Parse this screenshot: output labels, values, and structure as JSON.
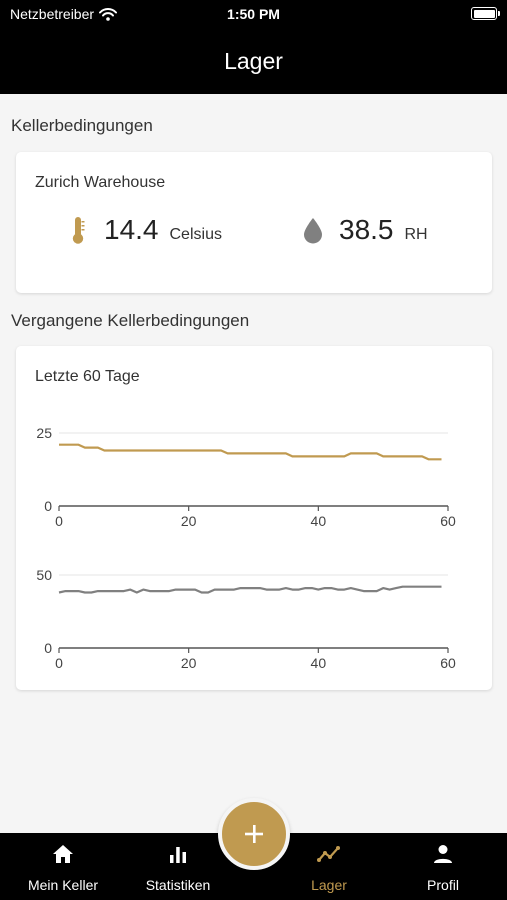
{
  "status_bar": {
    "carrier": "Netzbetreiber",
    "time": "1:50 PM"
  },
  "app_bar": {
    "title": "Lager"
  },
  "current": {
    "section_title": "Kellerbedingungen",
    "location": "Zurich Warehouse",
    "temperature": {
      "value": "14.4",
      "unit": "Celsius"
    },
    "humidity": {
      "value": "38.5",
      "unit": "RH"
    }
  },
  "history": {
    "section_title": "Vergangene Kellerbedingungen",
    "card_title": "Letzte 60 Tage"
  },
  "chart_data": [
    {
      "type": "line",
      "series": [
        {
          "x": [
            0,
            3,
            4,
            6,
            7,
            25,
            26,
            35,
            36,
            44,
            45,
            49,
            50,
            56,
            57,
            59
          ],
          "y": [
            21,
            21,
            20,
            20,
            19,
            19,
            18,
            18,
            17,
            17,
            18,
            18,
            17,
            17,
            16,
            16
          ]
        }
      ],
      "xlim": [
        0,
        60
      ],
      "ylim": [
        0,
        25
      ],
      "xticks": [
        0,
        20,
        40,
        60
      ],
      "yticks": [
        0,
        25
      ],
      "grid": true,
      "color": "#c09a50"
    },
    {
      "type": "line",
      "series": [
        {
          "x": [
            0,
            1,
            3,
            4,
            5,
            6,
            7,
            10,
            11,
            12,
            13,
            14,
            17,
            18,
            21,
            22,
            23,
            24,
            27,
            28,
            31,
            32,
            34,
            35,
            36,
            37,
            38,
            39,
            40,
            41,
            42,
            43,
            44,
            45,
            46,
            47,
            49,
            50,
            51,
            52,
            53,
            59
          ],
          "y": [
            38,
            39,
            39,
            38,
            38,
            39,
            39,
            39,
            40,
            38,
            40,
            39,
            39,
            40,
            40,
            38,
            38,
            40,
            40,
            41,
            41,
            40,
            40,
            41,
            40,
            40,
            41,
            41,
            40,
            41,
            41,
            40,
            40,
            41,
            40,
            39,
            39,
            41,
            40,
            41,
            42,
            42
          ]
        }
      ],
      "xlim": [
        0,
        60
      ],
      "ylim": [
        0,
        50
      ],
      "xticks": [
        0,
        20,
        40,
        60
      ],
      "yticks": [
        0,
        50
      ],
      "grid": true,
      "color": "#808080"
    }
  ],
  "nav": {
    "items": [
      {
        "label": "Mein Keller",
        "icon": "home-icon"
      },
      {
        "label": "Statistiken",
        "icon": "bar-chart-icon"
      },
      {
        "label": "Lager",
        "icon": "trend-icon",
        "active": true
      },
      {
        "label": "Profil",
        "icon": "person-icon"
      }
    ],
    "fab_icon": "plus-icon"
  },
  "colors": {
    "accent": "#c09a50",
    "bar": "#000000",
    "background": "#f5f5f5",
    "humidity": "#808080"
  }
}
